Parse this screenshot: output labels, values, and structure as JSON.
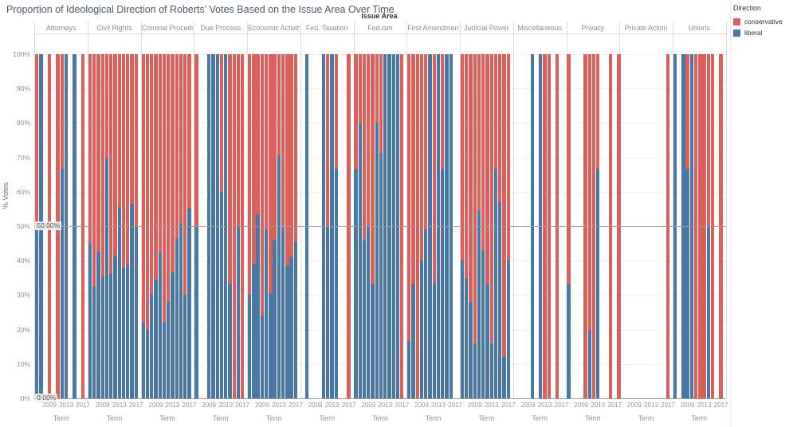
{
  "title": "Proportion of Ideological Direction of Roberts’ Votes Based on the Issue Area Over Time",
  "legend": {
    "title": "Direction",
    "items": [
      {
        "label": "conservative",
        "color": "#d9605b"
      },
      {
        "label": "liberal",
        "color": "#4a78a5"
      }
    ]
  },
  "axes": {
    "col_header_title": "Issue Area",
    "y_title": "% Votes",
    "y_ticks": [
      "0%",
      "10%",
      "20%",
      "30%",
      "40%",
      "50%",
      "60%",
      "70%",
      "80%",
      "90%",
      "100%"
    ],
    "x_title": "Term",
    "x_ticks": [
      "2009",
      "2013",
      "2017"
    ]
  },
  "ref_lines": [
    {
      "label": "50.00%",
      "value": 50
    },
    {
      "label": "0.00%",
      "value": 0
    }
  ],
  "chart_data": {
    "type": "bar",
    "stacked": true,
    "ylabel": "% Votes",
    "xlabel": "Term",
    "ylim": [
      0,
      100
    ],
    "term_range": [
      2006,
      2018
    ],
    "series_names": [
      "conservative",
      "liberal"
    ],
    "note": "Each bar is a 100% stacked column; 'liberal' is the blue bottom share in percent, conservative = 100 - liberal.",
    "colors": {
      "conservative": "#d9605b",
      "liberal": "#4a78a5"
    },
    "panels": [
      {
        "issue": "Attorneys",
        "bars": [
          {
            "term": 2006,
            "liberal": 50
          },
          {
            "term": 2007,
            "liberal": 100
          },
          {
            "term": 2009,
            "liberal": 0
          },
          {
            "term": 2011,
            "liberal": 0
          },
          {
            "term": 2012,
            "liberal": 66.7
          },
          {
            "term": 2013,
            "liberal": 100
          },
          {
            "term": 2015,
            "liberal": 100
          },
          {
            "term": 2017,
            "liberal": 0
          }
        ]
      },
      {
        "issue": "Civil Rights",
        "bars": [
          {
            "term": 2006,
            "liberal": 45
          },
          {
            "term": 2007,
            "liberal": 32.5
          },
          {
            "term": 2008,
            "liberal": 42.5
          },
          {
            "term": 2009,
            "liberal": 35.5
          },
          {
            "term": 2010,
            "liberal": 70
          },
          {
            "term": 2011,
            "liberal": 36
          },
          {
            "term": 2012,
            "liberal": 41.5
          },
          {
            "term": 2013,
            "liberal": 55.5
          },
          {
            "term": 2014,
            "liberal": 38
          },
          {
            "term": 2015,
            "liberal": 39
          },
          {
            "term": 2016,
            "liberal": 56.5
          },
          {
            "term": 2017,
            "liberal": 50
          }
        ]
      },
      {
        "issue": "Criminal Procedure",
        "bars": [
          {
            "term": 2006,
            "liberal": 22
          },
          {
            "term": 2007,
            "liberal": 20
          },
          {
            "term": 2008,
            "liberal": 30
          },
          {
            "term": 2009,
            "liberal": 34.5
          },
          {
            "term": 2010,
            "liberal": 42.5
          },
          {
            "term": 2011,
            "liberal": 22
          },
          {
            "term": 2012,
            "liberal": 28
          },
          {
            "term": 2013,
            "liberal": 36.5
          },
          {
            "term": 2014,
            "liberal": 46.5
          },
          {
            "term": 2015,
            "liberal": 51
          },
          {
            "term": 2016,
            "liberal": 30
          },
          {
            "term": 2017,
            "liberal": 55
          }
        ]
      },
      {
        "issue": "Due Process",
        "bars": [
          {
            "term": 2006,
            "liberal": 50
          },
          {
            "term": 2009,
            "liberal": 100
          },
          {
            "term": 2010,
            "liberal": 100
          },
          {
            "term": 2011,
            "liberal": 100
          },
          {
            "term": 2012,
            "liberal": 60
          },
          {
            "term": 2013,
            "liberal": 100
          },
          {
            "term": 2014,
            "liberal": 33.3
          },
          {
            "term": 2015,
            "liberal": 0
          },
          {
            "term": 2016,
            "liberal": 50
          },
          {
            "term": 2017,
            "liberal": 0
          }
        ]
      },
      {
        "issue": "Economic Activity",
        "bars": [
          {
            "term": 2006,
            "liberal": 30
          },
          {
            "term": 2007,
            "liberal": 39
          },
          {
            "term": 2008,
            "liberal": 53.5
          },
          {
            "term": 2009,
            "liberal": 24
          },
          {
            "term": 2010,
            "liberal": 49
          },
          {
            "term": 2011,
            "liberal": 30.5
          },
          {
            "term": 2012,
            "liberal": 46
          },
          {
            "term": 2013,
            "liberal": 70.5
          },
          {
            "term": 2014,
            "liberal": 49.5
          },
          {
            "term": 2015,
            "liberal": 38.5
          },
          {
            "term": 2016,
            "liberal": 41
          },
          {
            "term": 2017,
            "liberal": 45.5
          }
        ]
      },
      {
        "issue": "Fed. Taxation",
        "bars": [
          {
            "term": 2007,
            "liberal": 100
          },
          {
            "term": 2011,
            "liberal": 100
          },
          {
            "term": 2012,
            "liberal": 50
          },
          {
            "term": 2013,
            "liberal": 100
          },
          {
            "term": 2014,
            "liberal": 66.7
          },
          {
            "term": 2017,
            "liberal": 0
          }
        ]
      },
      {
        "issue": "Fed.ism",
        "bars": [
          {
            "term": 2006,
            "liberal": 66.7
          },
          {
            "term": 2007,
            "liberal": 80
          },
          {
            "term": 2008,
            "liberal": 46
          },
          {
            "term": 2009,
            "liberal": 50
          },
          {
            "term": 2010,
            "liberal": 33.3
          },
          {
            "term": 2011,
            "liberal": 80
          },
          {
            "term": 2012,
            "liberal": 71.4
          },
          {
            "term": 2013,
            "liberal": 100
          },
          {
            "term": 2014,
            "liberal": 100
          },
          {
            "term": 2015,
            "liberal": 100
          },
          {
            "term": 2016,
            "liberal": 100
          },
          {
            "term": 2017,
            "liberal": 0
          }
        ]
      },
      {
        "issue": "First Amendment",
        "bars": [
          {
            "term": 2006,
            "liberal": 16.7
          },
          {
            "term": 2007,
            "liberal": 33.3
          },
          {
            "term": 2008,
            "liberal": 0
          },
          {
            "term": 2009,
            "liberal": 40
          },
          {
            "term": 2010,
            "liberal": 49
          },
          {
            "term": 2011,
            "liberal": 100
          },
          {
            "term": 2012,
            "liberal": 33.3
          },
          {
            "term": 2013,
            "liberal": 100
          },
          {
            "term": 2014,
            "liberal": 66.7
          },
          {
            "term": 2015,
            "liberal": 100
          },
          {
            "term": 2016,
            "liberal": 100
          }
        ]
      },
      {
        "issue": "Judicial Power",
        "bars": [
          {
            "term": 2006,
            "liberal": 40
          },
          {
            "term": 2007,
            "liberal": 35
          },
          {
            "term": 2008,
            "liberal": 28
          },
          {
            "term": 2009,
            "liberal": 16
          },
          {
            "term": 2010,
            "liberal": 54.5
          },
          {
            "term": 2011,
            "liberal": 43
          },
          {
            "term": 2012,
            "liberal": 33
          },
          {
            "term": 2013,
            "liberal": 16
          },
          {
            "term": 2014,
            "liberal": 66.7
          },
          {
            "term": 2015,
            "liberal": 57
          },
          {
            "term": 2016,
            "liberal": 12
          },
          {
            "term": 2017,
            "liberal": 40
          }
        ]
      },
      {
        "issue": "Miscellaneous",
        "bars": [
          {
            "term": 2010,
            "liberal": 100
          },
          {
            "term": 2012,
            "liberal": 100
          },
          {
            "term": 2013,
            "liberal": 0
          },
          {
            "term": 2014,
            "liberal": 0
          },
          {
            "term": 2016,
            "liberal": 0
          }
        ]
      },
      {
        "issue": "Privacy",
        "bars": [
          {
            "term": 2006,
            "liberal": 33.3
          },
          {
            "term": 2010,
            "liberal": 0
          },
          {
            "term": 2011,
            "liberal": 20
          },
          {
            "term": 2012,
            "liberal": 0
          },
          {
            "term": 2013,
            "liberal": 66.7
          },
          {
            "term": 2016,
            "liberal": 0
          },
          {
            "term": 2018,
            "liberal": 0
          }
        ]
      },
      {
        "issue": "Private Action",
        "bars": [
          {
            "term": 2017,
            "liberal": 0
          }
        ]
      },
      {
        "issue": "Unions",
        "bars": [
          {
            "term": 2006,
            "liberal": 100
          },
          {
            "term": 2008,
            "liberal": 100
          },
          {
            "term": 2009,
            "liberal": 66.7
          },
          {
            "term": 2010,
            "liberal": 100
          },
          {
            "term": 2011,
            "liberal": 0
          },
          {
            "term": 2012,
            "liberal": 0
          },
          {
            "term": 2013,
            "liberal": 0
          },
          {
            "term": 2014,
            "liberal": 50
          },
          {
            "term": 2015,
            "liberal": 0
          },
          {
            "term": 2017,
            "liberal": 0
          }
        ]
      }
    ]
  }
}
